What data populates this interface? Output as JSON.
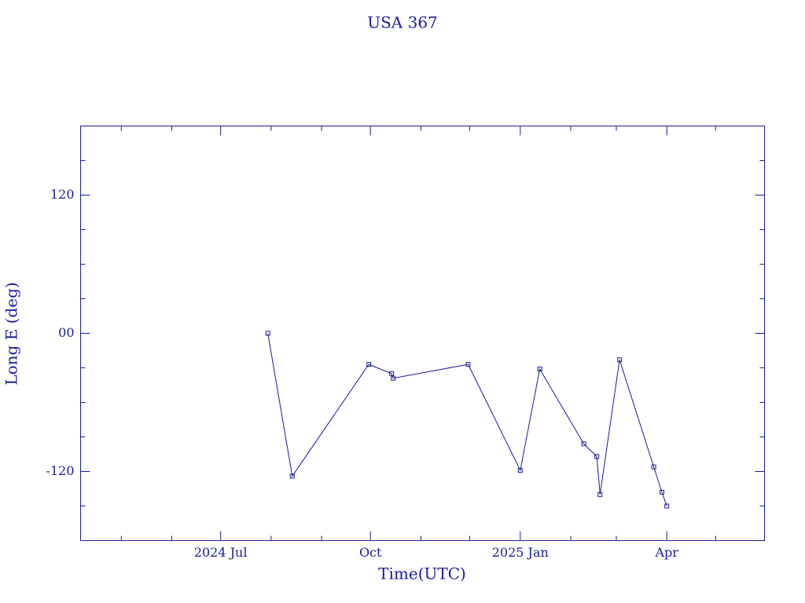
{
  "chart_data": {
    "type": "line",
    "title": "USA 367",
    "xlabel": "Time(UTC)",
    "ylabel": "Long E (deg)",
    "color": "#1a1a9c",
    "xlim": [
      "2024-04-06",
      "2025-05-31"
    ],
    "xticks": [
      {
        "value": "2024-07-01",
        "label": "2024 Jul"
      },
      {
        "value": "2024-10-01",
        "label": "Oct"
      },
      {
        "value": "2025-01-01",
        "label": "2025 Jan"
      },
      {
        "value": "2025-04-01",
        "label": "Apr"
      }
    ],
    "minor_xticks": [
      "2024-05-01",
      "2024-06-01",
      "2024-08-01",
      "2024-09-01",
      "2024-11-01",
      "2024-12-01",
      "2025-02-01",
      "2025-03-01",
      "2025-05-01"
    ],
    "ylim": [
      -180,
      180
    ],
    "yticks": [
      -120,
      {
        "value": 0,
        "label": "00"
      },
      120
    ],
    "minor_yticks": [
      -150,
      -90,
      -60,
      -30,
      30,
      60,
      90,
      150
    ],
    "x": [
      "2024-07-30",
      "2024-08-14",
      "2024-09-30",
      "2024-10-14",
      "2024-10-15",
      "2024-11-30",
      "2025-01-01",
      "2025-01-13",
      "2025-02-09",
      "2025-02-17",
      "2025-02-19",
      "2025-03-03",
      "2025-03-24",
      "2025-03-29",
      "2025-04-01"
    ],
    "values": [
      0,
      -124,
      -27,
      -35,
      -39,
      -27,
      -119,
      -31,
      -96,
      -107,
      -140,
      -23,
      -116,
      -138,
      -150
    ]
  }
}
